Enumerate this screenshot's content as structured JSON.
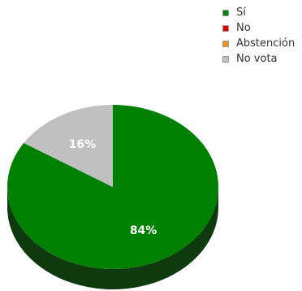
{
  "chart_data": {
    "type": "pie",
    "style": "3d",
    "title": "",
    "legend_position": "top-right",
    "slices": [
      {
        "label": "Sí",
        "value": 84,
        "color": "#008000",
        "side_color": "#0e3a0e",
        "data_label": "84%"
      },
      {
        "label": "No",
        "value": 0,
        "color": "#e00000",
        "side_color": "#700000",
        "data_label": ""
      },
      {
        "label": "Abstención",
        "value": 0,
        "color": "#f39218",
        "side_color": "#7a490c",
        "data_label": ""
      },
      {
        "label": "No vota",
        "value": 16,
        "color": "#c0c0c0",
        "side_color": "#6a6a6a",
        "data_label": "16%"
      }
    ]
  }
}
